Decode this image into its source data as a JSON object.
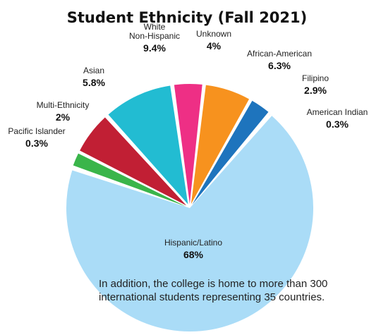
{
  "chart_data": {
    "type": "pie",
    "title": "Student Ethnicity (Fall 2021)",
    "slices": [
      {
        "label": "Unknown",
        "value": 4,
        "value_text": "4%",
        "color": "#ee2f85"
      },
      {
        "label": "African-American",
        "value": 6.3,
        "value_text": "6.3%",
        "color": "#f7921e"
      },
      {
        "label": "Filipino",
        "value": 2.9,
        "value_text": "2.9%",
        "color": "#1e74bd"
      },
      {
        "label": "American Indian",
        "value": 0.3,
        "value_text": "0.3%",
        "color": "#111111"
      },
      {
        "label": "Hispanic/Latino",
        "value": 68,
        "value_text": "68%",
        "color": "#aadcf7"
      },
      {
        "label": "Pacific Islander",
        "value": 0.3,
        "value_text": "0.3%",
        "color": "#a87a4f"
      },
      {
        "label": "Multi-Ethnicity",
        "value": 2,
        "value_text": "2%",
        "color": "#3ab54a"
      },
      {
        "label": "Asian",
        "value": 5.8,
        "value_text": "5.8%",
        "color": "#c11f34"
      },
      {
        "label": "White\nNon-Hispanic",
        "value": 9.4,
        "value_text": "9.4%",
        "color": "#22bcd2"
      }
    ]
  },
  "footnote": "In addition, the college is home to more than 300 international students representing 35 countries."
}
